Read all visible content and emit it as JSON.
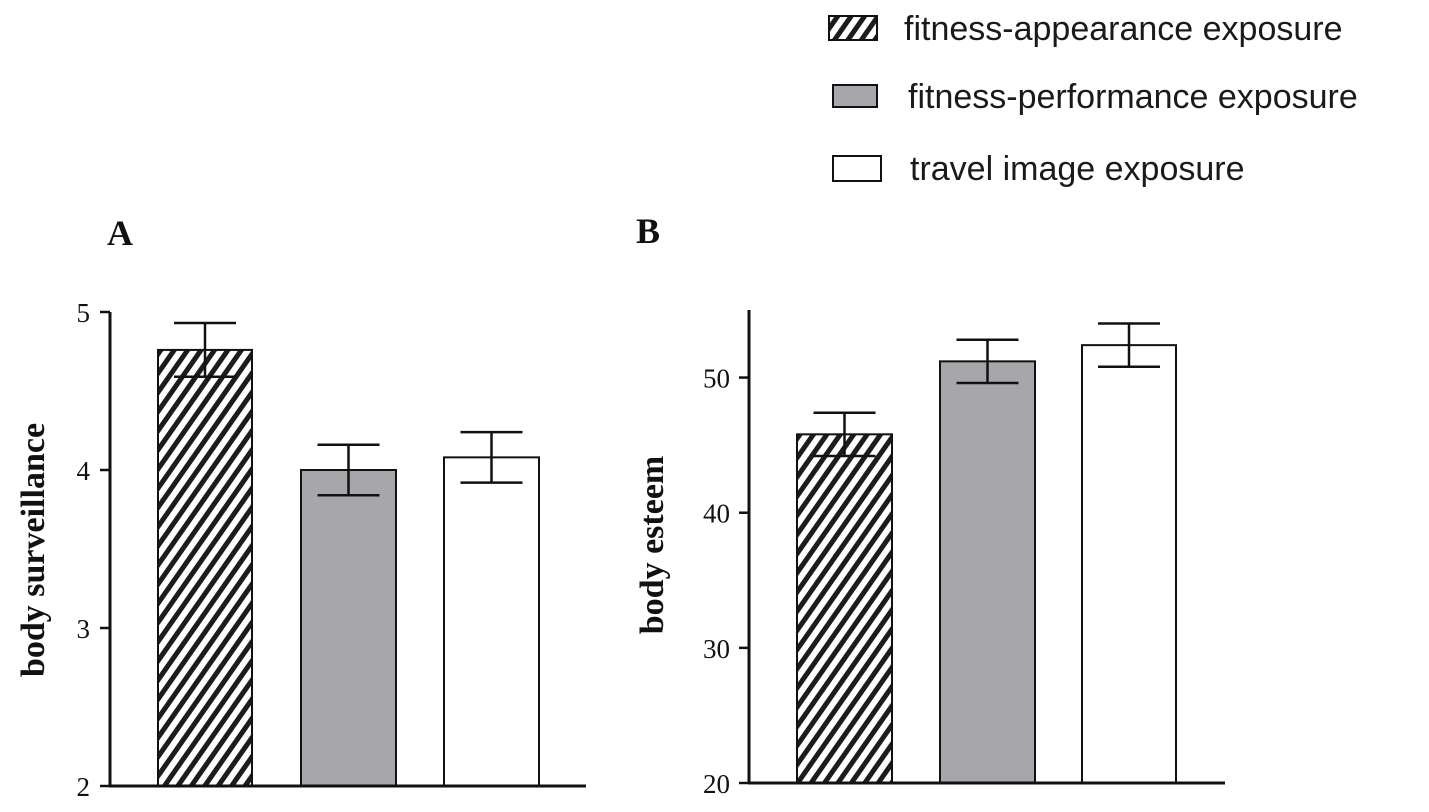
{
  "colors": {
    "hatch_bg": "#ffffff",
    "hatch_line": "#1c1c1c",
    "gray_fill": "#a7a7ab",
    "white_fill": "#ffffff",
    "stroke": "#111111"
  },
  "legend": [
    {
      "label": "fitness-appearance exposure",
      "pattern": "hatch"
    },
    {
      "label": "fitness-performance exposure",
      "pattern": "gray"
    },
    {
      "label": "travel image exposure",
      "pattern": "white"
    }
  ],
  "chart_data": [
    {
      "type": "bar",
      "panel_label": "A",
      "ylabel": "body surveillance",
      "ylim": [
        2,
        5
      ],
      "yticks": [
        2,
        3,
        4,
        5
      ],
      "categories": [
        "fitness-appearance exposure",
        "fitness-performance exposure",
        "travel image exposure"
      ],
      "values": [
        4.76,
        4.0,
        4.08
      ],
      "error": [
        0.17,
        0.16,
        0.16
      ],
      "patterns": [
        "hatch",
        "gray",
        "white"
      ],
      "grid": false
    },
    {
      "type": "bar",
      "panel_label": "B",
      "ylabel": "body esteem",
      "ylim": [
        20,
        55
      ],
      "yticks": [
        20,
        30,
        40,
        50
      ],
      "categories": [
        "fitness-appearance exposure",
        "fitness-performance exposure",
        "travel image exposure"
      ],
      "values": [
        45.8,
        51.2,
        52.4
      ],
      "error": [
        1.6,
        1.6,
        1.6
      ],
      "patterns": [
        "hatch",
        "gray",
        "white"
      ],
      "grid": false
    }
  ]
}
